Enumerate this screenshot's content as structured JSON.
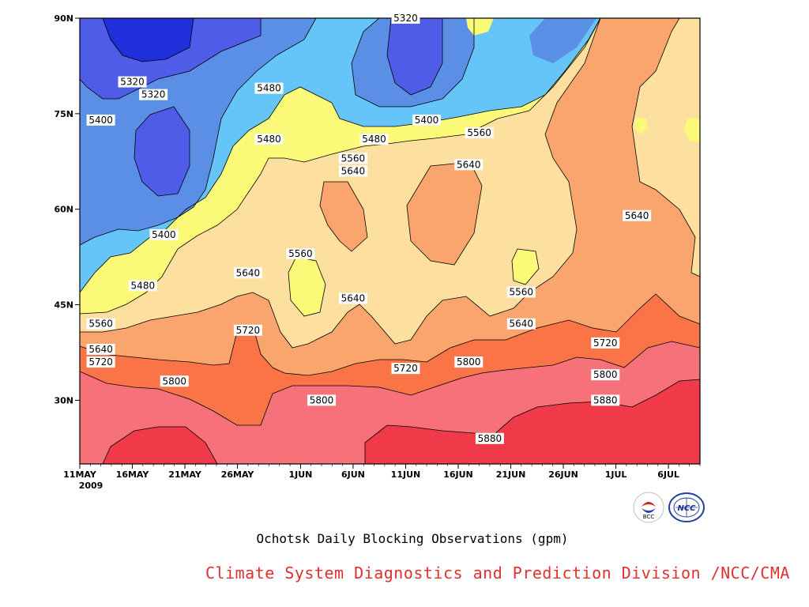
{
  "caption": "Ochotsk Daily Blocking Observations (gpm)",
  "credit": "Climate System Diagnostics and Prediction Division /NCC/CMA",
  "logos": {
    "left_text": "BCC",
    "right_text": "NCC"
  },
  "colors": {
    "lt5320": "#1f2fd9",
    "5320_5400": "#4f5ce8",
    "5400_5480": "#5b8fe6",
    "5480_5560": "#66c5f8",
    "5560_5640": "#fafa78",
    "5640_5720": "#fde0a0",
    "5720_5800": "#fba56e",
    "5800_5880": "#fb7448",
    "5880_5960": "#f7717a",
    "gt5880": "#f03a4a"
  },
  "chart_data": {
    "type": "contour",
    "title": "Ochotsk Daily Blocking Observations (gpm)",
    "variable": "geopotential height (gpm)",
    "x_axis": {
      "range": [
        "2009-05-11",
        "2009-07-09"
      ],
      "tick_labels": [
        "11MAY",
        "16MAY",
        "21MAY",
        "26MAY",
        "1JUN",
        "6JUN",
        "11JUN",
        "16JUN",
        "21JUN",
        "26JUN",
        "1JUL",
        "6JUL"
      ],
      "year_label": "2009"
    },
    "y_axis": {
      "range": [
        20,
        90
      ],
      "tick_labels": [
        "30N",
        "45N",
        "60N",
        "75N",
        "90N"
      ],
      "tick_values": [
        30,
        45,
        60,
        75,
        90
      ]
    },
    "contour_levels": [
      5320,
      5400,
      5480,
      5560,
      5640,
      5720,
      5800,
      5880
    ],
    "contour_labels": [
      {
        "text": "5320",
        "date": "2009-06-11",
        "lat": 90
      },
      {
        "text": "5320",
        "date": "2009-05-16",
        "lat": 80
      },
      {
        "text": "5320",
        "date": "2009-05-18",
        "lat": 78
      },
      {
        "text": "5400",
        "date": "2009-05-13",
        "lat": 74
      },
      {
        "text": "5480",
        "date": "2009-05-29",
        "lat": 79
      },
      {
        "text": "5400",
        "date": "2009-06-13",
        "lat": 74
      },
      {
        "text": "5560",
        "date": "2009-06-18",
        "lat": 72
      },
      {
        "text": "5480",
        "date": "2009-05-29",
        "lat": 71
      },
      {
        "text": "5480",
        "date": "2009-06-08",
        "lat": 71
      },
      {
        "text": "5560",
        "date": "2009-06-06",
        "lat": 68
      },
      {
        "text": "5640",
        "date": "2009-06-06",
        "lat": 66
      },
      {
        "text": "5640",
        "date": "2009-06-17",
        "lat": 67
      },
      {
        "text": "5400",
        "date": "2009-05-19",
        "lat": 56
      },
      {
        "text": "5640",
        "date": "2009-07-03",
        "lat": 59
      },
      {
        "text": "5560",
        "date": "2009-06-01",
        "lat": 53
      },
      {
        "text": "5640",
        "date": "2009-05-27",
        "lat": 50
      },
      {
        "text": "5480",
        "date": "2009-05-17",
        "lat": 48
      },
      {
        "text": "5560",
        "date": "2009-06-22",
        "lat": 47
      },
      {
        "text": "5640",
        "date": "2009-06-06",
        "lat": 46
      },
      {
        "text": "5560",
        "date": "2009-05-13",
        "lat": 42
      },
      {
        "text": "5640",
        "date": "2009-06-22",
        "lat": 42
      },
      {
        "text": "5720",
        "date": "2009-05-27",
        "lat": 41
      },
      {
        "text": "5720",
        "date": "2009-06-30",
        "lat": 39
      },
      {
        "text": "5640",
        "date": "2009-05-13",
        "lat": 38
      },
      {
        "text": "5720",
        "date": "2009-05-13",
        "lat": 36
      },
      {
        "text": "5720",
        "date": "2009-06-11",
        "lat": 35
      },
      {
        "text": "5800",
        "date": "2009-06-17",
        "lat": 36
      },
      {
        "text": "5800",
        "date": "2009-06-30",
        "lat": 34
      },
      {
        "text": "5800",
        "date": "2009-05-20",
        "lat": 33
      },
      {
        "text": "5800",
        "date": "2009-06-03",
        "lat": 30
      },
      {
        "text": "5880",
        "date": "2009-06-30",
        "lat": 30
      },
      {
        "text": "5880",
        "date": "2009-06-19",
        "lat": 24
      }
    ]
  }
}
